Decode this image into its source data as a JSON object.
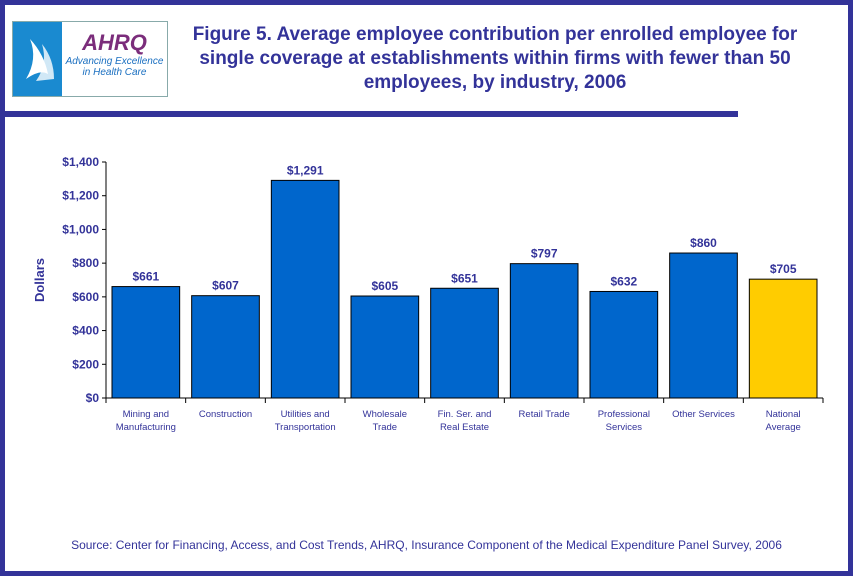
{
  "logo": {
    "org": "AHRQ",
    "tagline": "Advancing Excellence in Health Care"
  },
  "title": "Figure 5. Average employee contribution per enrolled employee for single coverage at establishments within firms with fewer than 50 employees, by industry, 2006",
  "source": "Source: Center for Financing, Access, and Cost Trends, AHRQ, Insurance Component of the Medical Expenditure Panel Survey, 2006",
  "chart_data": {
    "type": "bar",
    "title": "Figure 5. Average employee contribution per enrolled employee for single coverage at establishments within firms with fewer than 50 employees, by industry, 2006",
    "xlabel": "",
    "ylabel": "Dollars",
    "ylim": [
      0,
      1400
    ],
    "yticks": [
      "$0",
      "$200",
      "$400",
      "$600",
      "$800",
      "$1,000",
      "$1,200",
      "$1,400"
    ],
    "categories": [
      [
        "Mining and",
        "Manufacturing"
      ],
      [
        "Construction"
      ],
      [
        "Utilities and",
        "Transportation"
      ],
      [
        "Wholesale",
        "Trade"
      ],
      [
        "Fin. Ser. and",
        "Real Estate"
      ],
      [
        "Retail Trade"
      ],
      [
        "Professional",
        "Services"
      ],
      [
        "Other Services"
      ],
      [
        "National",
        "Average"
      ]
    ],
    "values": [
      661,
      607,
      1291,
      605,
      651,
      797,
      632,
      860,
      705
    ],
    "labels": [
      "$661",
      "$607",
      "$1,291",
      "$605",
      "$651",
      "$797",
      "$632",
      "$860",
      "$705"
    ],
    "colors": {
      "bar": "#0066cc",
      "highlight": "#ffcc00",
      "text": "#333399"
    },
    "grid": false,
    "legend": "none"
  }
}
